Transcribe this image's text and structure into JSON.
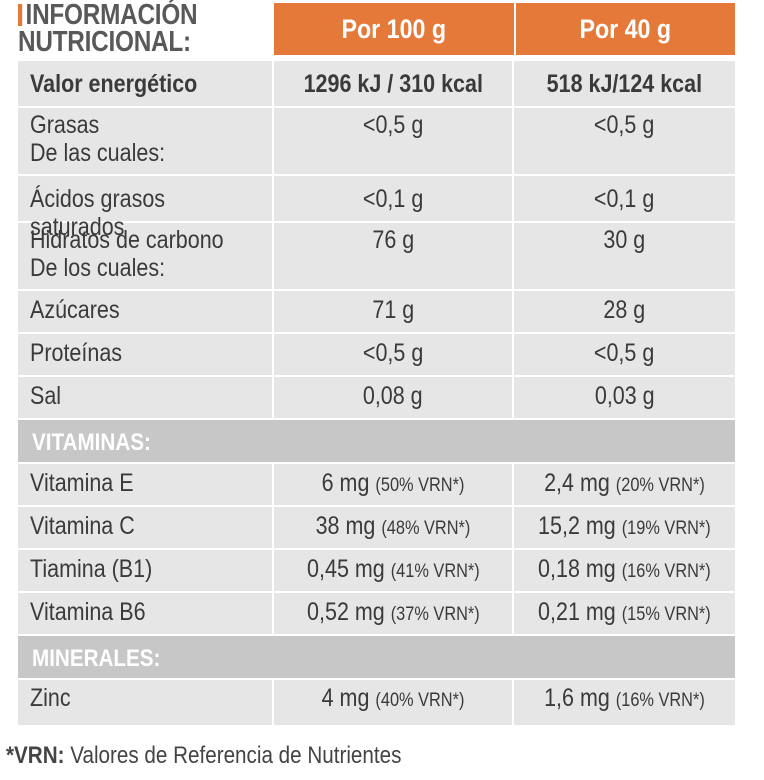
{
  "header": {
    "title_line1": "INFORMACIÓN",
    "title_line2": "NUTRICIONAL:",
    "col_100g": "Por 100 g",
    "col_40g": "Por 40 g"
  },
  "rows": {
    "energy": {
      "label": "Valor energético",
      "v100": "1296 kJ / 310 kcal",
      "v40": "518 kJ/124 kcal"
    },
    "fat": {
      "label": "Grasas",
      "sub": "De las cuales:",
      "v100": "<0,5 g",
      "v40": "<0,5 g"
    },
    "satfat": {
      "label": "Ácidos grasos saturados",
      "v100": "<0,1 g",
      "v40": "<0,1 g"
    },
    "carbs": {
      "label": "Hidratos de carbono",
      "sub": "De los cuales:",
      "v100": "76 g",
      "v40": "30 g"
    },
    "sugars": {
      "label": "Azúcares",
      "v100": "71 g",
      "v40": "28 g"
    },
    "protein": {
      "label": "Proteínas",
      "v100": "<0,5 g",
      "v40": "<0,5 g"
    },
    "salt": {
      "label": "Sal",
      "v100": "0,08 g",
      "v40": "0,03 g"
    }
  },
  "vitamins": {
    "heading": "VITAMINAS:",
    "e": {
      "label": "Vitamina E",
      "v100": "6 mg",
      "v100_vrn": "(50% VRN*)",
      "v40": "2,4 mg",
      "v40_vrn": "(20% VRN*)"
    },
    "c": {
      "label": "Vitamina C",
      "v100": "38 mg",
      "v100_vrn": "(48% VRN*)",
      "v40": "15,2 mg",
      "v40_vrn": "(19% VRN*)"
    },
    "b1": {
      "label": "Tiamina (B1)",
      "v100": "0,45 mg",
      "v100_vrn": "(41% VRN*)",
      "v40": "0,18 mg",
      "v40_vrn": "(16% VRN*)"
    },
    "b6": {
      "label": "Vitamina B6",
      "v100": "0,52 mg",
      "v100_vrn": "(37% VRN*)",
      "v40": "0,21 mg",
      "v40_vrn": "(15% VRN*)"
    }
  },
  "minerals": {
    "heading": "MINERALES:",
    "zinc": {
      "label": "Zinc",
      "v100": "4 mg",
      "v100_vrn": "(40% VRN*)",
      "v40": "1,6 mg",
      "v40_vrn": "(16% VRN*)"
    }
  },
  "footnote": {
    "key": "*VRN:",
    "text": "Valores de Referencia de Nutrientes"
  }
}
